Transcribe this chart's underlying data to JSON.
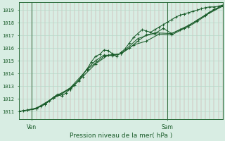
{
  "title": "Pression niveau de la mer( hPa )",
  "ylabel_ticks": [
    1011,
    1012,
    1013,
    1014,
    1015,
    1016,
    1017,
    1018,
    1019
  ],
  "ylim": [
    1010.4,
    1019.6
  ],
  "xlim": [
    0,
    48
  ],
  "ven_x": 3,
  "sam_x": 35,
  "background_color": "#d8ede3",
  "grid_color_h": "#b8d8c8",
  "line_color": "#1a5c2a",
  "axis_color": "#2a6c3a",
  "text_color": "#1a5c2a",
  "line1_x": [
    0,
    1,
    2,
    3,
    4,
    5,
    6,
    7,
    8,
    9,
    10,
    11,
    12,
    13,
    14,
    15,
    16,
    17,
    18,
    19,
    20,
    21,
    22,
    23,
    24,
    25,
    26,
    27,
    28,
    29,
    30,
    31,
    32,
    33,
    34,
    35,
    36,
    37,
    38,
    39,
    40,
    41,
    42,
    43,
    44,
    45,
    46,
    47,
    48
  ],
  "line1_y": [
    1011.0,
    1011.05,
    1011.1,
    1011.15,
    1011.2,
    1011.4,
    1011.6,
    1011.85,
    1012.1,
    1012.35,
    1012.2,
    1012.45,
    1012.75,
    1013.05,
    1013.45,
    1013.9,
    1014.35,
    1014.9,
    1015.35,
    1015.5,
    1015.85,
    1015.8,
    1015.55,
    1015.35,
    1015.65,
    1015.95,
    1016.4,
    1016.85,
    1017.15,
    1017.45,
    1017.35,
    1017.25,
    1017.45,
    1017.65,
    1017.85,
    1018.05,
    1018.25,
    1018.45,
    1018.6,
    1018.7,
    1018.8,
    1018.9,
    1019.0,
    1019.1,
    1019.2,
    1019.25,
    1019.25,
    1019.3,
    1019.4
  ],
  "line2_x": [
    0,
    2,
    4,
    6,
    8,
    10,
    12,
    14,
    16,
    18,
    20,
    22,
    24,
    26,
    28,
    30,
    32,
    34,
    36,
    38,
    40,
    42,
    44,
    46,
    48
  ],
  "line2_y": [
    1011.0,
    1011.1,
    1011.25,
    1011.55,
    1012.05,
    1012.35,
    1012.85,
    1013.4,
    1014.35,
    1015.0,
    1015.45,
    1015.4,
    1015.55,
    1016.0,
    1016.55,
    1017.05,
    1017.15,
    1017.55,
    1017.15,
    1017.45,
    1017.7,
    1018.1,
    1018.55,
    1019.05,
    1019.35
  ],
  "line3_x": [
    0,
    3,
    6,
    9,
    12,
    15,
    18,
    21,
    24,
    27,
    30,
    33,
    36,
    39,
    42,
    45,
    48
  ],
  "line3_y": [
    1011.0,
    1011.15,
    1011.55,
    1012.3,
    1012.75,
    1013.75,
    1014.75,
    1015.45,
    1015.55,
    1016.25,
    1016.55,
    1017.1,
    1017.05,
    1017.55,
    1018.2,
    1018.85,
    1019.35
  ],
  "line4_x": [
    0,
    4,
    8,
    12,
    16,
    20,
    24,
    28,
    32,
    36,
    40,
    44,
    48
  ],
  "line4_y": [
    1011.0,
    1011.25,
    1012.05,
    1012.85,
    1014.3,
    1015.35,
    1015.55,
    1016.75,
    1017.2,
    1017.15,
    1017.8,
    1018.6,
    1019.3
  ]
}
